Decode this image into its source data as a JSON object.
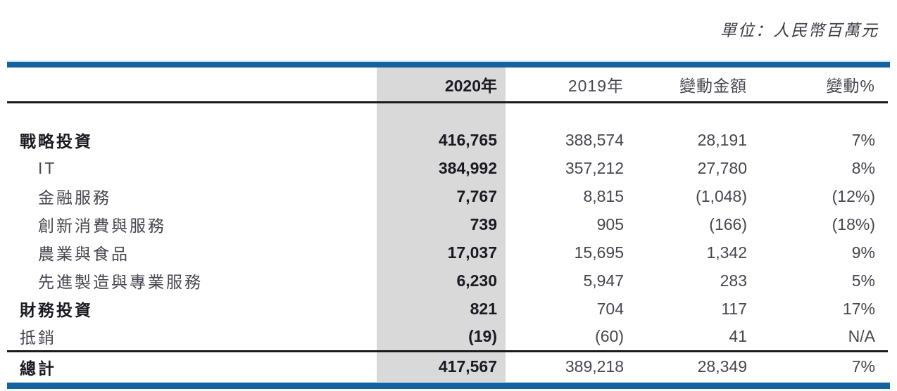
{
  "unit_note": "單位：人民幣百萬元",
  "colors": {
    "accent_bar": "#15639E",
    "accent_bar_edge": "#C3E3F3",
    "highlight_column": "#D9D9D9",
    "rule_line": "#1B1B1B",
    "text_bold": "#1A1A22",
    "text_regular": "#46464F"
  },
  "table": {
    "columns": [
      "",
      "2020年",
      "2019年",
      "變動金額",
      "變動%"
    ],
    "rows": [
      {
        "label": "戰略投資",
        "bold": true,
        "indent": false,
        "v2020": "416,765",
        "v2019": "388,574",
        "change": "28,191",
        "pct": "7%"
      },
      {
        "label": "IT",
        "bold": false,
        "indent": true,
        "v2020": "384,992",
        "v2019": "357,212",
        "change": "27,780",
        "pct": "8%"
      },
      {
        "label": "金融服務",
        "bold": false,
        "indent": true,
        "v2020": "7,767",
        "v2019": "8,815",
        "change": "(1,048)",
        "pct": "(12%)"
      },
      {
        "label": "創新消費與服務",
        "bold": false,
        "indent": true,
        "v2020": "739",
        "v2019": "905",
        "change": "(166)",
        "pct": "(18%)"
      },
      {
        "label": "農業與食品",
        "bold": false,
        "indent": true,
        "v2020": "17,037",
        "v2019": "15,695",
        "change": "1,342",
        "pct": "9%"
      },
      {
        "label": "先進製造與專業服務",
        "bold": false,
        "indent": true,
        "v2020": "6,230",
        "v2019": "5,947",
        "change": "283",
        "pct": "5%"
      },
      {
        "label": "財務投資",
        "bold": true,
        "indent": false,
        "v2020": "821",
        "v2019": "704",
        "change": "117",
        "pct": "17%"
      },
      {
        "label": "抵銷",
        "bold": false,
        "indent": false,
        "v2020": "(19)",
        "v2019": "(60)",
        "change": "41",
        "pct": "N/A"
      }
    ],
    "total": {
      "label": "總計",
      "v2020": "417,567",
      "v2019": "389,218",
      "change": "28,349",
      "pct": "7%"
    }
  }
}
